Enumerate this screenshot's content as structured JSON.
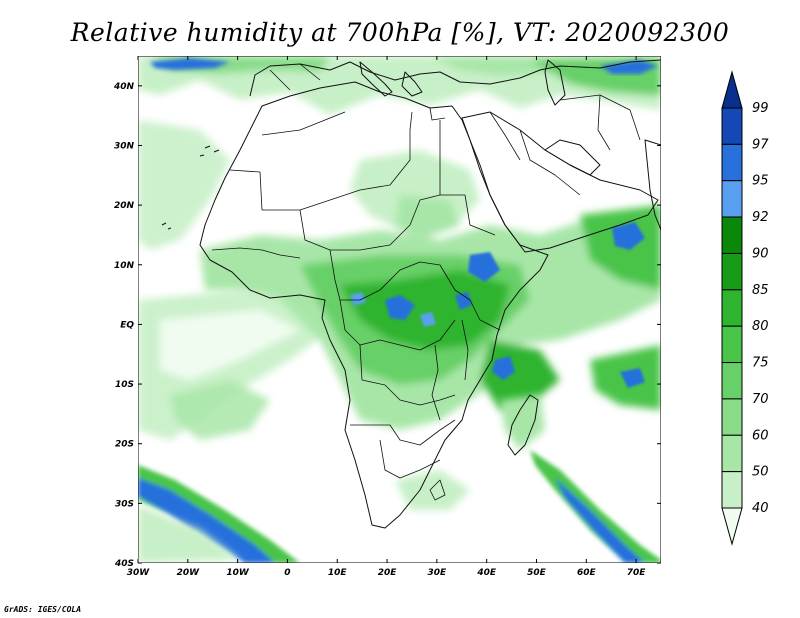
{
  "title": "Relative humidity at 700hPa [%], VT: 2020092300",
  "credit": "GrADS: IGES/COLA",
  "map": {
    "lon_range": [
      -30,
      75
    ],
    "lat_range": [
      -40,
      45
    ],
    "lat_ticks": [
      {
        "value": 40,
        "label": "40N"
      },
      {
        "value": 30,
        "label": "30N"
      },
      {
        "value": 20,
        "label": "20N"
      },
      {
        "value": 10,
        "label": "10N"
      },
      {
        "value": 0,
        "label": "EQ"
      },
      {
        "value": -10,
        "label": "10S"
      },
      {
        "value": -20,
        "label": "20S"
      },
      {
        "value": -30,
        "label": "30S"
      },
      {
        "value": -40,
        "label": "40S"
      }
    ],
    "lon_ticks": [
      {
        "value": -30,
        "label": "30W"
      },
      {
        "value": -20,
        "label": "20W"
      },
      {
        "value": -10,
        "label": "10W"
      },
      {
        "value": 0,
        "label": "0"
      },
      {
        "value": 10,
        "label": "10E"
      },
      {
        "value": 20,
        "label": "20E"
      },
      {
        "value": 30,
        "label": "30E"
      },
      {
        "value": 40,
        "label": "40E"
      },
      {
        "value": 50,
        "label": "50E"
      },
      {
        "value": 60,
        "label": "60E"
      },
      {
        "value": 70,
        "label": "70E"
      }
    ]
  },
  "colorbar": {
    "levels": [
      "40",
      "50",
      "60",
      "70",
      "75",
      "80",
      "85",
      "90",
      "92",
      "95",
      "97",
      "99"
    ],
    "colors": [
      "#f0fcf0",
      "#c8f0c8",
      "#a8e6a8",
      "#88dc88",
      "#68d068",
      "#48c448",
      "#2eb42e",
      "#189c18",
      "#0a880a",
      "#5aa0f0",
      "#2870dc",
      "#1448b4",
      "#0a2f8c"
    ]
  },
  "colors": {
    "map_border": "#000000",
    "coast": "#111111",
    "background": "#ffffff"
  }
}
